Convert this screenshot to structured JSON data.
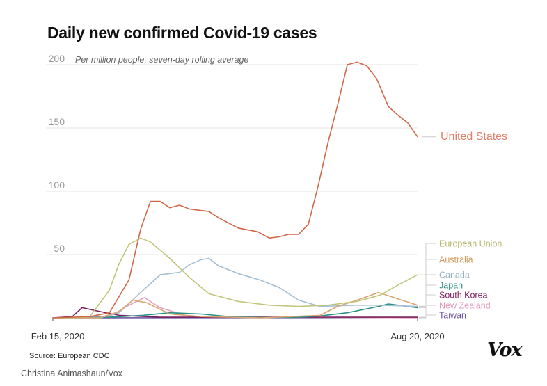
{
  "chart_data": {
    "type": "line",
    "title": "Daily new confirmed Covid-19 cases",
    "subtitle": "Per million people, seven-day rolling average",
    "x_start_label": "Feb 15, 2020",
    "x_end_label": "Aug 20, 2020",
    "ylim": [
      0,
      210
    ],
    "y_ticks": [
      "50",
      "100",
      "150",
      "200"
    ],
    "grid": true,
    "series": [
      {
        "name": "United States",
        "color": "#d0694a",
        "label_color": "#e0806a",
        "x": [
          "Feb 15, 2020",
          "Mar 5, 2020",
          "Mar 15, 2020",
          "Mar 25, 2020",
          "Mar 31, 2020",
          "Apr 5, 2020",
          "Apr 10, 2020",
          "Apr 15, 2020",
          "Apr 20, 2020",
          "Apr 25, 2020",
          "Apr 30, 2020",
          "May 5, 2020",
          "May 10, 2020",
          "May 20, 2020",
          "May 30, 2020",
          "Jun 5, 2020",
          "Jun 10, 2020",
          "Jun 15, 2020",
          "Jun 20, 2020",
          "Jun 25, 2020",
          "Jun 30, 2020",
          "Jul 5, 2020",
          "Jul 10, 2020",
          "Jul 15, 2020",
          "Jul 20, 2020",
          "Jul 25, 2020",
          "Jul 30, 2020",
          "Aug 5, 2020",
          "Aug 10, 2020",
          "Aug 15, 2020",
          "Aug 20, 2020"
        ],
        "values": [
          0,
          1,
          4,
          30,
          70,
          92,
          92,
          87,
          89,
          86,
          85,
          84,
          79,
          71,
          68,
          63,
          64,
          66,
          66,
          74,
          104,
          138,
          168,
          200,
          202,
          199,
          189,
          167,
          160,
          154,
          143
        ]
      },
      {
        "name": "European Union",
        "color": "#c3c57a",
        "label_color": "#b5b66a",
        "x": [
          "Feb 15, 2020",
          "Feb 25, 2020",
          "Mar 5, 2020",
          "Mar 15, 2020",
          "Mar 20, 2020",
          "Mar 25, 2020",
          "Mar 31, 2020",
          "Apr 5, 2020",
          "Apr 15, 2020",
          "Apr 25, 2020",
          "May 5, 2020",
          "May 20, 2020",
          "Jun 5, 2020",
          "Jun 20, 2020",
          "Jul 5, 2020",
          "Jul 20, 2020",
          "Aug 1, 2020",
          "Aug 10, 2020",
          "Aug 20, 2020"
        ],
        "values": [
          0,
          0,
          1,
          22,
          43,
          58,
          63,
          60,
          47,
          32,
          19,
          13,
          10,
          9,
          10,
          13,
          18,
          26,
          34
        ]
      },
      {
        "name": "Australia",
        "color": "#d9a570",
        "label_color": "#d49a5c",
        "x": [
          "Feb 15, 2020",
          "Mar 10, 2020",
          "Mar 20, 2020",
          "Mar 27, 2020",
          "Apr 3, 2020",
          "Apr 15, 2020",
          "May 1, 2020",
          "Jun 1, 2020",
          "Jul 1, 2020",
          "Jul 10, 2020",
          "Jul 20, 2020",
          "Jul 31, 2020",
          "Aug 10, 2020",
          "Aug 20, 2020"
        ],
        "values": [
          0,
          0,
          5,
          14,
          12,
          3,
          1,
          0,
          2,
          9,
          14,
          20,
          15,
          10
        ]
      },
      {
        "name": "Canada",
        "color": "#a4bfd4",
        "label_color": "#95b2c6",
        "x": [
          "Feb 15, 2020",
          "Mar 10, 2020",
          "Mar 20, 2020",
          "Mar 31, 2020",
          "Apr 10, 2020",
          "Apr 20, 2020",
          "Apr 25, 2020",
          "May 1, 2020",
          "May 5, 2020",
          "May 10, 2020",
          "May 20, 2020",
          "May 31, 2020",
          "Jun 10, 2020",
          "Jun 20, 2020",
          "Jul 1, 2020",
          "Jul 20, 2020",
          "Aug 1, 2020",
          "Aug 20, 2020"
        ],
        "values": [
          0,
          0,
          4,
          20,
          34,
          36,
          42,
          46,
          47,
          41,
          35,
          30,
          24,
          14,
          9,
          10,
          10,
          9
        ]
      },
      {
        "name": "Japan",
        "color": "#2c8f85",
        "label_color": "#2a8c82",
        "x": [
          "Feb 15, 2020",
          "Mar 15, 2020",
          "Apr 1, 2020",
          "Apr 15, 2020",
          "May 1, 2020",
          "May 15, 2020",
          "Jun 1, 2020",
          "Jun 20, 2020",
          "Jul 1, 2020",
          "Jul 15, 2020",
          "Jul 31, 2020",
          "Aug 5, 2020",
          "Aug 10, 2020",
          "Aug 20, 2020"
        ],
        "values": [
          0,
          0.5,
          2,
          4,
          3,
          1,
          0.3,
          0.5,
          1.5,
          4,
          9,
          11,
          10,
          8
        ]
      },
      {
        "name": "South Korea",
        "color": "#7a1f5c",
        "label_color": "#7a1f5c",
        "x": [
          "Feb 15, 2020",
          "Feb 25, 2020",
          "Mar 1, 2020",
          "Mar 10, 2020",
          "Mar 20, 2020",
          "Apr 10, 2020",
          "Aug 20, 2020"
        ],
        "values": [
          0,
          1,
          8,
          5,
          2,
          0.5,
          0.5
        ]
      },
      {
        "name": "New Zealand",
        "color": "#e8a0c0",
        "label_color": "#e39cba",
        "x": [
          "Feb 15, 2020",
          "Mar 15, 2020",
          "Mar 25, 2020",
          "Apr 2, 2020",
          "Apr 10, 2020",
          "Apr 25, 2020",
          "Aug 20, 2020"
        ],
        "values": [
          0,
          1,
          10,
          16,
          8,
          1,
          0
        ]
      },
      {
        "name": "Taiwan",
        "color": "#6b53a0",
        "label_color": "#6b53a0",
        "x": [
          "Feb 15, 2020",
          "Aug 20, 2020"
        ],
        "values": [
          0,
          0.2
        ]
      }
    ]
  },
  "footer": {
    "source": "Source: European CDC",
    "credit": "Christina Animashaun/Vox",
    "logo": "Vox"
  }
}
